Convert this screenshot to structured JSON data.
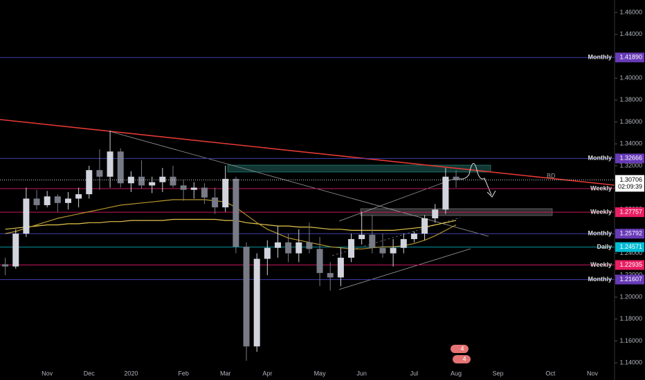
{
  "chart_data": {
    "type": "candlestick",
    "categories": [
      null,
      null,
      null,
      null,
      "Nov",
      null,
      null,
      null,
      "Dec",
      null,
      null,
      null,
      "2020",
      null,
      null,
      null,
      null,
      "Feb",
      null,
      null,
      null,
      "Mar",
      null,
      null,
      null,
      "Apr",
      null,
      null,
      null,
      null,
      "May",
      null,
      null,
      null,
      "Jun",
      null,
      null,
      null,
      null,
      "Jul",
      null,
      null,
      null,
      "Aug",
      null,
      null,
      null,
      "Sep",
      null,
      null,
      null,
      null,
      "Oct",
      null,
      null,
      null,
      "Nov",
      null,
      null
    ],
    "ohlc": {
      "open": [
        1.23,
        1.228,
        1.258,
        1.29,
        1.284,
        1.292,
        1.286,
        1.29,
        1.294,
        1.316,
        1.31,
        1.333,
        1.304,
        1.31,
        1.302,
        1.305,
        1.31,
        1.302,
        1.298,
        1.3,
        1.291,
        1.282,
        1.308,
        1.246,
        1.155,
        1.235,
        1.245,
        1.25,
        1.24,
        1.25,
        1.244,
        1.222,
        1.218,
        1.236,
        1.253,
        1.257,
        1.245,
        1.24,
        1.245,
        1.253,
        1.258,
        1.272,
        1.28,
        1.31,
        null,
        null,
        null,
        null,
        null,
        null,
        null,
        null,
        null,
        null,
        null,
        null,
        null,
        null,
        null
      ],
      "high": [
        1.236,
        1.262,
        1.3,
        1.298,
        1.297,
        1.294,
        1.296,
        1.3,
        1.32,
        1.335,
        1.352,
        1.336,
        1.315,
        1.325,
        1.31,
        1.318,
        1.32,
        1.307,
        1.305,
        1.304,
        1.3,
        1.32,
        1.31,
        1.25,
        1.24,
        1.252,
        1.265,
        1.258,
        1.262,
        1.268,
        1.255,
        1.232,
        1.245,
        1.258,
        1.278,
        1.275,
        1.258,
        1.253,
        1.258,
        1.26,
        1.275,
        1.285,
        1.318,
        1.316,
        null,
        null,
        null,
        null,
        null,
        null,
        null,
        null,
        null,
        null,
        null,
        null,
        null,
        null,
        null
      ],
      "low": [
        1.22,
        1.226,
        1.255,
        1.28,
        1.282,
        1.278,
        1.28,
        1.282,
        1.29,
        1.298,
        1.3,
        1.3,
        1.296,
        1.299,
        1.295,
        1.296,
        1.3,
        1.288,
        1.29,
        1.285,
        1.276,
        1.278,
        1.24,
        1.142,
        1.15,
        1.22,
        1.236,
        1.232,
        1.232,
        1.24,
        1.21,
        1.206,
        1.21,
        1.232,
        1.248,
        1.24,
        1.236,
        1.228,
        1.24,
        1.25,
        1.252,
        1.268,
        1.276,
        1.3,
        null,
        null,
        null,
        null,
        null,
        null,
        null,
        null,
        null,
        null,
        null,
        null,
        null,
        null,
        null
      ],
      "close": [
        1.228,
        1.258,
        1.29,
        1.284,
        1.292,
        1.286,
        1.29,
        1.294,
        1.316,
        1.31,
        1.333,
        1.304,
        1.31,
        1.302,
        1.305,
        1.31,
        1.302,
        1.298,
        1.3,
        1.291,
        1.282,
        1.308,
        1.246,
        1.155,
        1.235,
        1.245,
        1.25,
        1.24,
        1.25,
        1.244,
        1.222,
        1.218,
        1.236,
        1.253,
        1.257,
        1.245,
        1.24,
        1.245,
        1.253,
        1.258,
        1.272,
        1.28,
        1.31,
        1.307,
        null,
        null,
        null,
        null,
        null,
        null,
        null,
        null,
        null,
        null,
        null,
        null,
        null,
        null,
        null
      ]
    },
    "up_color": "#d1d4dc",
    "down_color": "#787b86",
    "lines": [
      {
        "color": "#e6c84a",
        "values": [
          1.262,
          1.263,
          1.264,
          1.265,
          1.266,
          1.266,
          1.267,
          1.267,
          1.268,
          1.268,
          1.269,
          1.269,
          1.27,
          1.27,
          1.27,
          1.27,
          1.271,
          1.271,
          1.271,
          1.271,
          1.271,
          1.27,
          1.27,
          1.268,
          1.267,
          1.266,
          1.265,
          1.265,
          1.264,
          1.264,
          1.263,
          1.262,
          1.262,
          1.261,
          1.261,
          1.261,
          1.261,
          1.261,
          1.262,
          1.263,
          1.264,
          1.266,
          1.268,
          1.27,
          null,
          null,
          null,
          null,
          null,
          null,
          null,
          null,
          null,
          null,
          null,
          null,
          null,
          null,
          null
        ]
      },
      {
        "color": "#b8962e",
        "values": [
          1.258,
          1.26,
          1.263,
          1.266,
          1.269,
          1.272,
          1.274,
          1.276,
          1.278,
          1.28,
          1.282,
          1.284,
          1.285,
          1.286,
          1.287,
          1.288,
          1.289,
          1.289,
          1.289,
          1.289,
          1.288,
          1.287,
          1.282,
          1.275,
          1.268,
          1.262,
          1.258,
          1.254,
          1.252,
          1.25,
          1.248,
          1.246,
          1.245,
          1.244,
          1.244,
          1.245,
          1.246,
          1.246,
          1.247,
          1.249,
          1.252,
          1.256,
          1.261,
          1.266,
          null,
          null,
          null,
          null,
          null,
          null,
          null,
          null,
          null,
          null,
          null,
          null,
          null,
          null,
          null
        ]
      }
    ],
    "ylim": [
      1.1243,
      1.4714
    ],
    "yticks": [
      {
        "value": 1.14,
        "label": "1.14000"
      },
      {
        "value": 1.16,
        "label": "1.16000"
      },
      {
        "value": 1.18,
        "label": "1.18000"
      },
      {
        "value": 1.2,
        "label": "1.20000"
      },
      {
        "value": 1.22,
        "label": "1.22000"
      },
      {
        "value": 1.24,
        "label": "1.24000"
      },
      {
        "value": 1.26,
        "label": "1.26000"
      },
      {
        "value": 1.28,
        "label": "1.28000"
      },
      {
        "value": 1.3,
        "label": "1.30000"
      },
      {
        "value": 1.32,
        "label": "1.32000"
      },
      {
        "value": 1.34,
        "label": "1.34000"
      },
      {
        "value": 1.36,
        "label": "1.36000"
      },
      {
        "value": 1.38,
        "label": "1.38000"
      },
      {
        "value": 1.4,
        "label": "1.40000"
      },
      {
        "value": 1.42,
        "label": "1.42000"
      },
      {
        "value": 1.44,
        "label": "1.44000"
      },
      {
        "value": 1.46,
        "label": "1.46000"
      }
    ],
    "levels": [
      {
        "name": "Monthly",
        "value": 1.4189,
        "value_label": "1.41890",
        "color": "#3f3fb0",
        "box_color": "#673ab7"
      },
      {
        "name": "Monthly",
        "value": 1.32666,
        "value_label": "1.32666",
        "color": "#3f3fb0",
        "box_color": "#673ab7"
      },
      {
        "name": "Weekly",
        "value": 1.2991,
        "color": "#c2185b"
      },
      {
        "name": "Weekly",
        "value": 1.27757,
        "value_label": "1.27757",
        "color": "#c2185b",
        "box_color": "#e91e63"
      },
      {
        "name": "Monthly",
        "value": 1.25792,
        "value_label": "1.25792",
        "color": "#3f3fb0",
        "box_color": "#673ab7"
      },
      {
        "name": "Daily",
        "value": 1.24571,
        "value_label": "1.24571",
        "color": "#0097a7",
        "box_color": "#00bcd4"
      },
      {
        "name": "Weekly",
        "value": 1.22935,
        "value_label": "1.22935",
        "color": "#c2185b",
        "box_color": "#e91e63"
      },
      {
        "name": "Monthly",
        "value": 1.21607,
        "value_label": "1.21607",
        "color": "#3f3fb0",
        "box_color": "#673ab7"
      }
    ],
    "last_price": {
      "value": 1.30706,
      "value_label": "1.30706",
      "countdown": "02:09:39"
    },
    "annotation": "BD",
    "badges": [
      "4",
      "4"
    ]
  }
}
